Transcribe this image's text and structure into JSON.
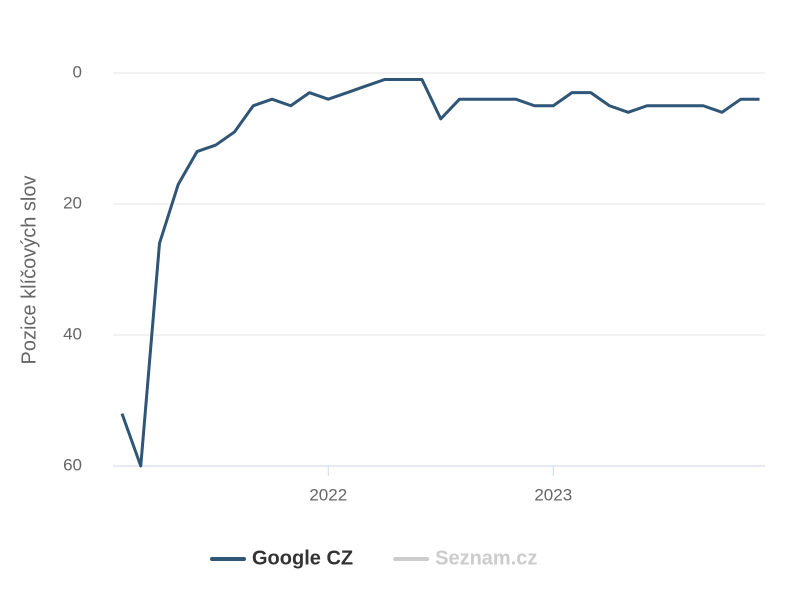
{
  "chart_data": {
    "type": "line",
    "y_label": "Pozice klíčových slov",
    "categories": [
      null,
      null,
      null,
      null,
      null,
      null,
      null,
      null,
      null,
      null,
      null,
      "2022",
      null,
      null,
      null,
      null,
      null,
      null,
      null,
      null,
      null,
      null,
      null,
      "2023",
      null,
      null,
      null,
      null,
      null,
      null,
      null,
      null,
      null,
      null,
      null
    ],
    "series": [
      {
        "name": "Google CZ",
        "color": "#2f5577",
        "values": [
          52,
          60,
          26,
          17,
          12,
          11,
          9,
          5,
          4,
          5,
          3,
          4,
          3,
          2,
          1,
          1,
          1,
          7,
          4,
          4,
          4,
          4,
          5,
          5,
          3,
          3,
          5,
          6,
          5,
          5,
          5,
          5,
          6,
          4,
          4
        ]
      },
      {
        "name": "Seznam.cz",
        "color": "#cccccc",
        "hidden": true,
        "values": [
          null,
          null,
          null,
          null,
          null,
          null,
          null,
          null,
          null,
          null,
          null,
          null,
          null,
          null,
          null,
          null,
          null,
          null,
          null,
          null,
          null,
          null,
          null,
          null,
          null,
          null,
          null,
          null,
          null,
          null,
          null,
          null,
          null,
          null,
          null
        ]
      }
    ],
    "ylim": [
      0,
      60
    ],
    "y_inverted": true,
    "yticks": [
      0,
      20,
      40,
      60
    ],
    "grid": true
  }
}
